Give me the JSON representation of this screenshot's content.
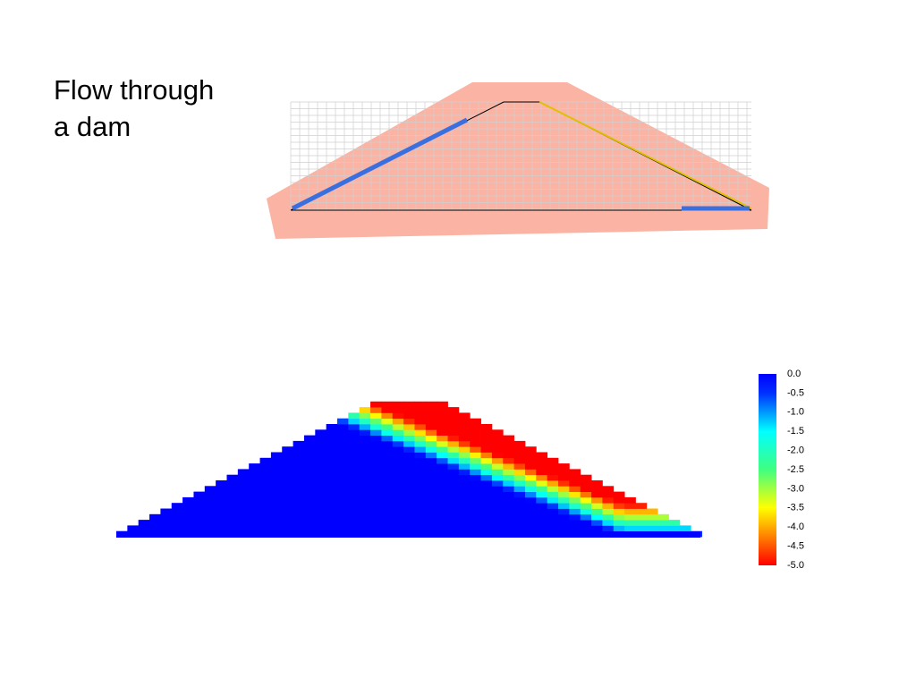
{
  "title": "Flow through a dam",
  "colorbar": {
    "labels": [
      "0.0",
      "-0.5",
      "-1.0",
      "-1.5",
      "-2.0",
      "-2.5",
      "-3.0",
      "-3.5",
      "-4.0",
      "-4.5",
      "-5.0"
    ]
  }
}
